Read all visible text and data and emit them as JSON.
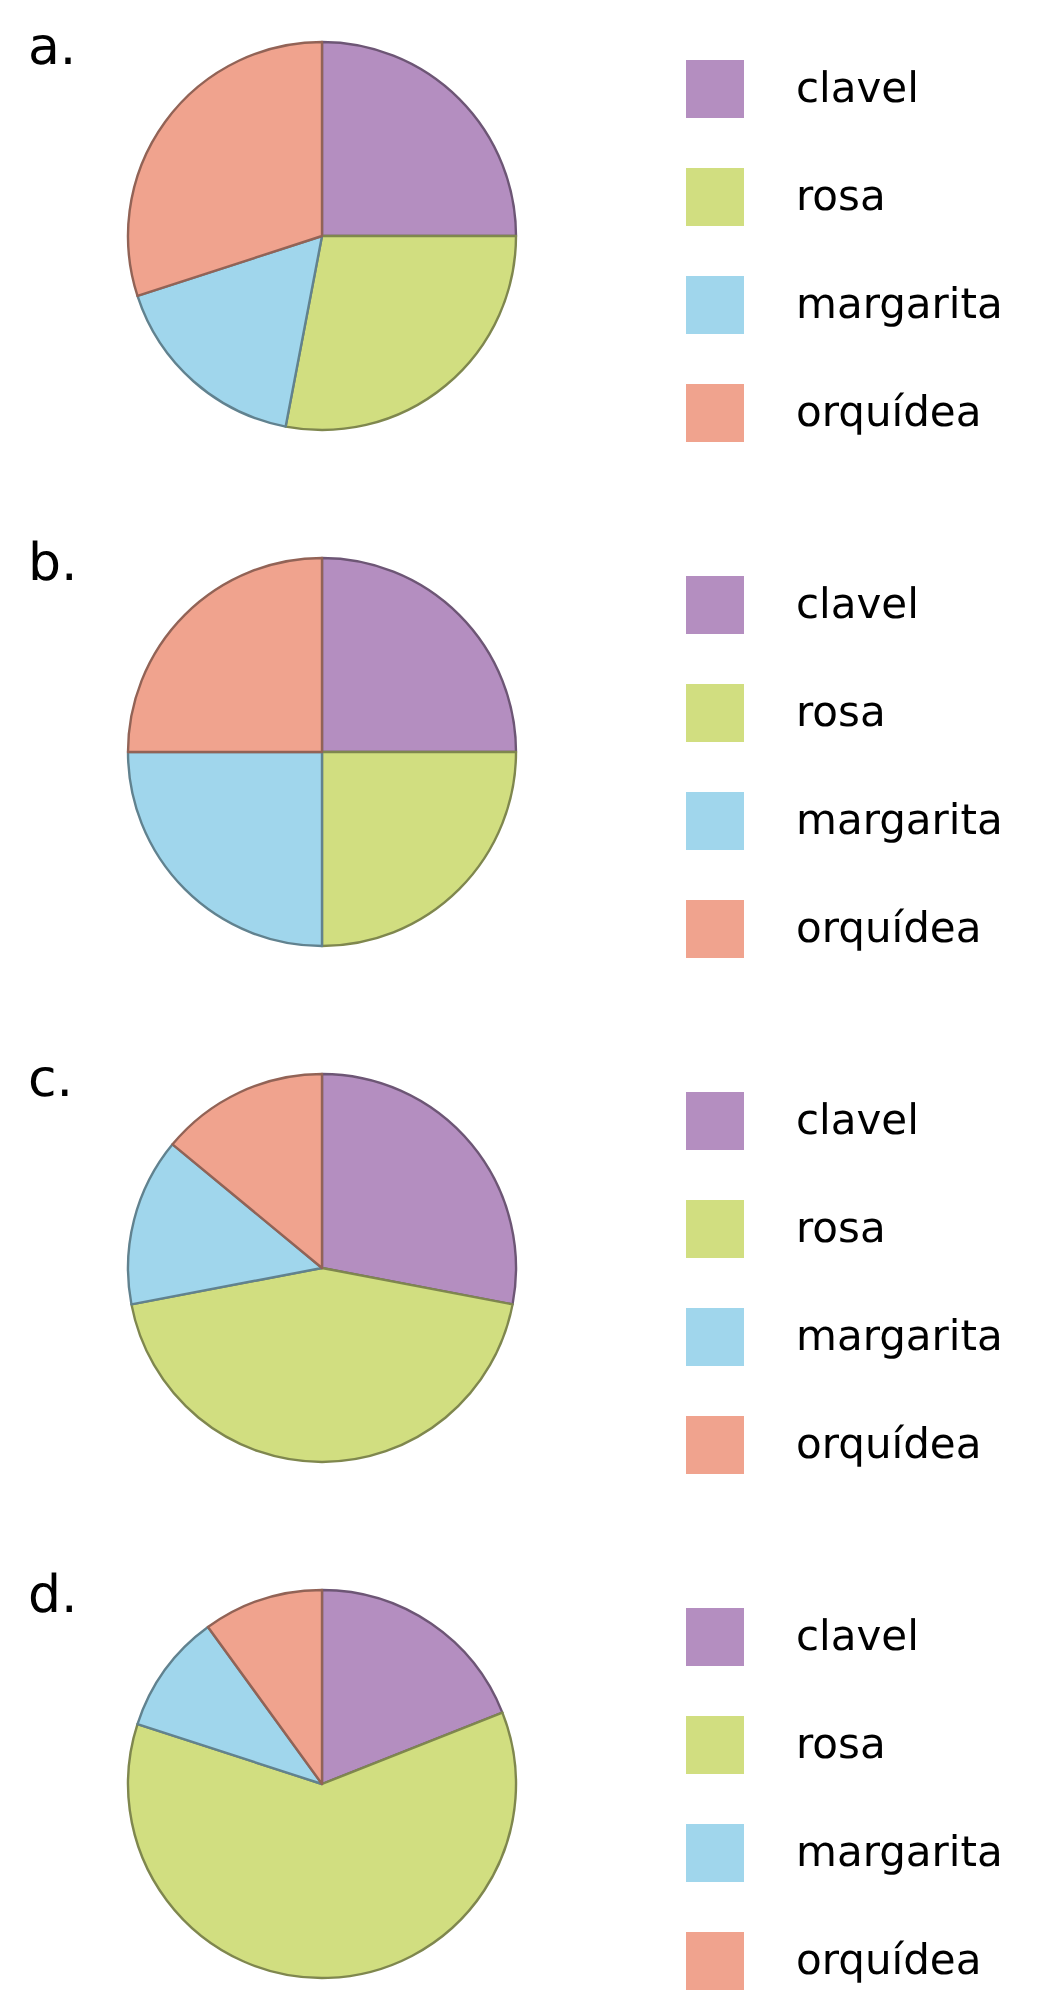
{
  "chart_data": [
    {
      "type": "pie",
      "title": "a.",
      "categories": [
        "clavel",
        "rosa",
        "margarita",
        "orquídea"
      ],
      "values": [
        25,
        28,
        17,
        30
      ],
      "colors": [
        "#b48ec0",
        "#d1de80",
        "#a0d6ec",
        "#f0a38e"
      ],
      "legend": "right"
    },
    {
      "type": "pie",
      "title": "b.",
      "categories": [
        "clavel",
        "rosa",
        "margarita",
        "orquídea"
      ],
      "values": [
        25,
        25,
        25,
        25
      ],
      "colors": [
        "#b48ec0",
        "#d1de80",
        "#a0d6ec",
        "#f0a38e"
      ],
      "legend": "right"
    },
    {
      "type": "pie",
      "title": "c.",
      "categories": [
        "clavel",
        "rosa",
        "margarita",
        "orquídea"
      ],
      "values": [
        28,
        44,
        14,
        14
      ],
      "colors": [
        "#b48ec0",
        "#d1de80",
        "#a0d6ec",
        "#f0a38e"
      ],
      "legend": "right"
    },
    {
      "type": "pie",
      "title": "d.",
      "categories": [
        "clavel",
        "rosa",
        "margarita",
        "orquídea"
      ],
      "values": [
        19,
        61,
        10,
        10
      ],
      "colors": [
        "#b48ec0",
        "#d1de80",
        "#a0d6ec",
        "#f0a38e"
      ],
      "legend": "right"
    }
  ]
}
